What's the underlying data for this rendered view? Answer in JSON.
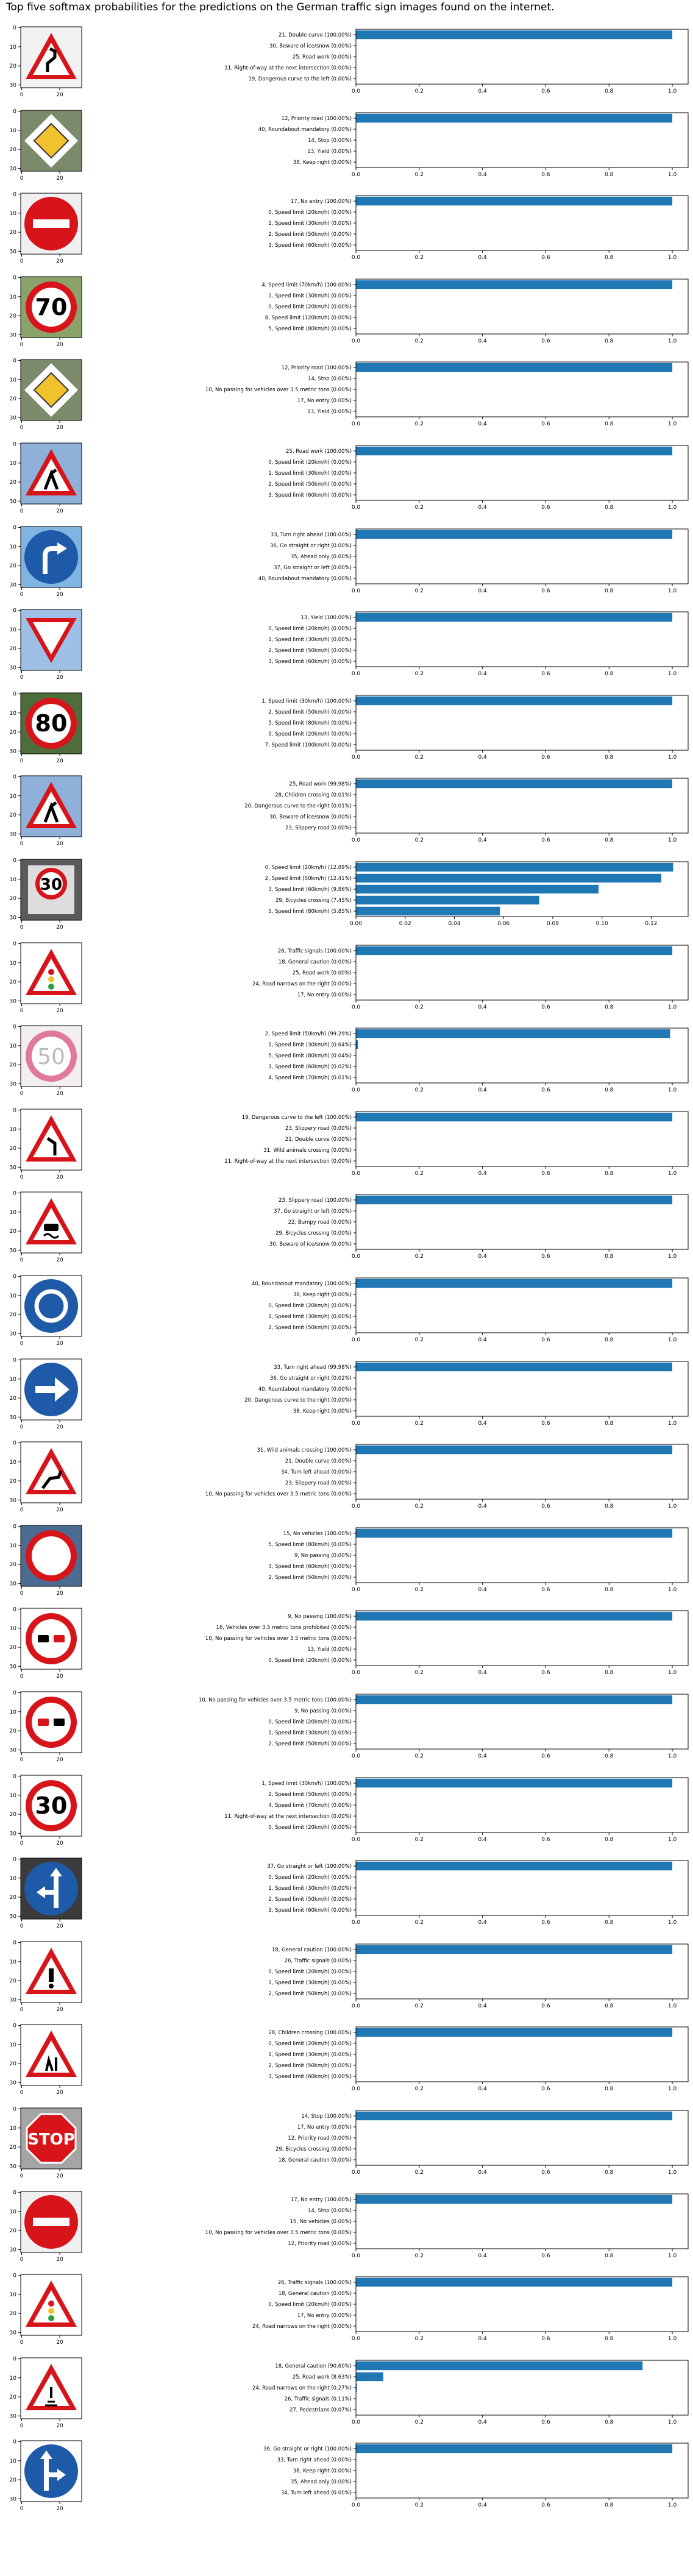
{
  "figure_title": "Top five softmax probabilities for the predictions on the German traffic sign images found on the internet.",
  "colors": {
    "bar": "#1f77b4",
    "axis": "#000000",
    "sign_red": "#d7141a",
    "sign_blue": "#1f5aa8",
    "sign_white": "#ffffff"
  },
  "image_axes": {
    "xticks": [
      "0",
      "20"
    ],
    "yticks": [
      "0",
      "10",
      "20",
      "30"
    ]
  },
  "chart_data": [
    {
      "type": "bar",
      "orientation": "horizontal",
      "image_icon": "double-curve-sign-icon",
      "categories": [
        "21, Double curve (100.00%)",
        "30, Beware of ice/snow (0.00%)",
        "25, Road work (0.00%)",
        "11, Right-of-way at the next intersection (0.00%)",
        "19, Dangerous curve to the left (0.00%)"
      ],
      "values": [
        1.0,
        0,
        0,
        0,
        0
      ],
      "xlim": [
        0,
        1.05
      ],
      "xticks": [
        "0.0",
        "0.2",
        "0.4",
        "0.6",
        "0.8",
        "1.0"
      ]
    },
    {
      "type": "bar",
      "orientation": "horizontal",
      "image_icon": "priority-road-sign-icon",
      "categories": [
        "12, Priority road (100.00%)",
        "40, Roundabout mandatory (0.00%)",
        "14, Stop (0.00%)",
        "13, Yield (0.00%)",
        "38, Keep right (0.00%)"
      ],
      "values": [
        1.0,
        0,
        0,
        0,
        0
      ],
      "xlim": [
        0,
        1.05
      ],
      "xticks": [
        "0.0",
        "0.2",
        "0.4",
        "0.6",
        "0.8",
        "1.0"
      ]
    },
    {
      "type": "bar",
      "orientation": "horizontal",
      "image_icon": "no-entry-sign-icon",
      "categories": [
        "17, No entry (100.00%)",
        "0, Speed limit (20km/h) (0.00%)",
        "1, Speed limit (30km/h) (0.00%)",
        "2, Speed limit (50km/h) (0.00%)",
        "3, Speed limit (60km/h) (0.00%)"
      ],
      "values": [
        1.0,
        0,
        0,
        0,
        0
      ],
      "xlim": [
        0,
        1.05
      ],
      "xticks": [
        "0.0",
        "0.2",
        "0.4",
        "0.6",
        "0.8",
        "1.0"
      ]
    },
    {
      "type": "bar",
      "orientation": "horizontal",
      "image_icon": "speed-limit-70-sign-icon",
      "categories": [
        "4, Speed limit (70km/h) (100.00%)",
        "1, Speed limit (30km/h) (0.00%)",
        "0, Speed limit (20km/h) (0.00%)",
        "8, Speed limit (120km/h) (0.00%)",
        "5, Speed limit (80km/h) (0.00%)"
      ],
      "values": [
        1.0,
        0,
        0,
        0,
        0
      ],
      "xlim": [
        0,
        1.05
      ],
      "xticks": [
        "0.0",
        "0.2",
        "0.4",
        "0.6",
        "0.8",
        "1.0"
      ]
    },
    {
      "type": "bar",
      "orientation": "horizontal",
      "image_icon": "priority-road-sign-icon",
      "categories": [
        "12, Priority road (100.00%)",
        "14, Stop (0.00%)",
        "10, No passing for vehicles over 3.5 metric tons (0.00%)",
        "17, No entry (0.00%)",
        "13, Yield (0.00%)"
      ],
      "values": [
        1.0,
        0,
        0,
        0,
        0
      ],
      "xlim": [
        0,
        1.05
      ],
      "xticks": [
        "0.0",
        "0.2",
        "0.4",
        "0.6",
        "0.8",
        "1.0"
      ]
    },
    {
      "type": "bar",
      "orientation": "horizontal",
      "image_icon": "road-work-sign-icon",
      "categories": [
        "25, Road work (100.00%)",
        "0, Speed limit (20km/h) (0.00%)",
        "1, Speed limit (30km/h) (0.00%)",
        "2, Speed limit (50km/h) (0.00%)",
        "3, Speed limit (60km/h) (0.00%)"
      ],
      "values": [
        1.0,
        0,
        0,
        0,
        0
      ],
      "xlim": [
        0,
        1.05
      ],
      "xticks": [
        "0.0",
        "0.2",
        "0.4",
        "0.6",
        "0.8",
        "1.0"
      ]
    },
    {
      "type": "bar",
      "orientation": "horizontal",
      "image_icon": "turn-right-ahead-sign-icon",
      "categories": [
        "33, Turn right ahead (100.00%)",
        "36, Go straight or right (0.00%)",
        "35, Ahead only (0.00%)",
        "37, Go straight or left (0.00%)",
        "40, Roundabout mandatory (0.00%)"
      ],
      "values": [
        1.0,
        0,
        0,
        0,
        0
      ],
      "xlim": [
        0,
        1.05
      ],
      "xticks": [
        "0.0",
        "0.2",
        "0.4",
        "0.6",
        "0.8",
        "1.0"
      ]
    },
    {
      "type": "bar",
      "orientation": "horizontal",
      "image_icon": "yield-sign-icon",
      "categories": [
        "13, Yield (100.00%)",
        "0, Speed limit (20km/h) (0.00%)",
        "1, Speed limit (30km/h) (0.00%)",
        "2, Speed limit (50km/h) (0.00%)",
        "3, Speed limit (60km/h) (0.00%)"
      ],
      "values": [
        1.0,
        0,
        0,
        0,
        0
      ],
      "xlim": [
        0,
        1.05
      ],
      "xticks": [
        "0.0",
        "0.2",
        "0.4",
        "0.6",
        "0.8",
        "1.0"
      ]
    },
    {
      "type": "bar",
      "orientation": "horizontal",
      "image_icon": "speed-limit-80-sign-icon",
      "categories": [
        "1, Speed limit (30km/h) (100.00%)",
        "2, Speed limit (50km/h) (0.00%)",
        "5, Speed limit (80km/h) (0.00%)",
        "0, Speed limit (20km/h) (0.00%)",
        "7, Speed limit (100km/h) (0.00%)"
      ],
      "values": [
        1.0,
        0,
        0,
        0,
        0
      ],
      "xlim": [
        0,
        1.05
      ],
      "xticks": [
        "0.0",
        "0.2",
        "0.4",
        "0.6",
        "0.8",
        "1.0"
      ]
    },
    {
      "type": "bar",
      "orientation": "horizontal",
      "image_icon": "road-work-sign-icon",
      "categories": [
        "25, Road work (99.98%)",
        "28, Children crossing (0.01%)",
        "20, Dangerous curve to the right (0.01%)",
        "30, Beware of ice/snow (0.00%)",
        "23, Slippery road (0.00%)"
      ],
      "values": [
        0.9998,
        0.0001,
        0.0001,
        0,
        0
      ],
      "xlim": [
        0,
        1.05
      ],
      "xticks": [
        "0.0",
        "0.2",
        "0.4",
        "0.6",
        "0.8",
        "1.0"
      ]
    },
    {
      "type": "bar",
      "orientation": "horizontal",
      "image_icon": "speed-zone-30-sign-icon",
      "categories": [
        "0, Speed limit (20km/h) (12.89%)",
        "2, Speed limit (50km/h) (12.41%)",
        "3, Speed limit (60km/h) (9.86%)",
        "29, Bicycles crossing (7.45%)",
        "5, Speed limit (80km/h) (5.85%)"
      ],
      "values": [
        0.1289,
        0.1241,
        0.0986,
        0.0745,
        0.0585
      ],
      "xlim": [
        0,
        0.135
      ],
      "xticks": [
        "0.00",
        "0.02",
        "0.04",
        "0.06",
        "0.08",
        "0.10",
        "0.12"
      ]
    },
    {
      "type": "bar",
      "orientation": "horizontal",
      "image_icon": "traffic-signals-sign-icon",
      "categories": [
        "26, Traffic signals (100.00%)",
        "18, General caution (0.00%)",
        "25, Road work (0.00%)",
        "24, Road narrows on the right (0.00%)",
        "17, No entry (0.00%)"
      ],
      "values": [
        1.0,
        0,
        0,
        0,
        0
      ],
      "xlim": [
        0,
        1.05
      ],
      "xticks": [
        "0.0",
        "0.2",
        "0.4",
        "0.6",
        "0.8",
        "1.0"
      ]
    },
    {
      "type": "bar",
      "orientation": "horizontal",
      "image_icon": "speed-limit-50-sign-icon",
      "categories": [
        "2, Speed limit (50km/h) (99.29%)",
        "1, Speed limit (30km/h) (0.64%)",
        "5, Speed limit (80km/h) (0.04%)",
        "3, Speed limit (60km/h) (0.02%)",
        "4, Speed limit (70km/h) (0.01%)"
      ],
      "values": [
        0.9929,
        0.0064,
        0.0004,
        0.0002,
        0.0001
      ],
      "xlim": [
        0,
        1.05
      ],
      "xticks": [
        "0.0",
        "0.2",
        "0.4",
        "0.6",
        "0.8",
        "1.0"
      ]
    },
    {
      "type": "bar",
      "orientation": "horizontal",
      "image_icon": "dangerous-curve-left-sign-icon",
      "categories": [
        "19, Dangerous curve to the left (100.00%)",
        "23, Slippery road (0.00%)",
        "21, Double curve (0.00%)",
        "31, Wild animals crossing (0.00%)",
        "11, Right-of-way at the next intersection (0.00%)"
      ],
      "values": [
        1.0,
        0,
        0,
        0,
        0
      ],
      "xlim": [
        0,
        1.05
      ],
      "xticks": [
        "0.0",
        "0.2",
        "0.4",
        "0.6",
        "0.8",
        "1.0"
      ]
    },
    {
      "type": "bar",
      "orientation": "horizontal",
      "image_icon": "slippery-road-sign-icon",
      "categories": [
        "23, Slippery road (100.00%)",
        "37, Go straight or left (0.00%)",
        "22, Bumpy road (0.00%)",
        "29, Bicycles crossing (0.00%)",
        "30, Beware of ice/snow (0.00%)"
      ],
      "values": [
        1.0,
        0,
        0,
        0,
        0
      ],
      "xlim": [
        0,
        1.05
      ],
      "xticks": [
        "0.0",
        "0.2",
        "0.4",
        "0.6",
        "0.8",
        "1.0"
      ]
    },
    {
      "type": "bar",
      "orientation": "horizontal",
      "image_icon": "roundabout-sign-icon",
      "categories": [
        "40, Roundabout mandatory (100.00%)",
        "38, Keep right (0.00%)",
        "0, Speed limit (20km/h) (0.00%)",
        "1, Speed limit (30km/h) (0.00%)",
        "2, Speed limit (50km/h) (0.00%)"
      ],
      "values": [
        1.0,
        0,
        0,
        0,
        0
      ],
      "xlim": [
        0,
        1.05
      ],
      "xticks": [
        "0.0",
        "0.2",
        "0.4",
        "0.6",
        "0.8",
        "1.0"
      ]
    },
    {
      "type": "bar",
      "orientation": "horizontal",
      "image_icon": "turn-right-arrow-sign-icon",
      "categories": [
        "33, Turn right ahead (99.98%)",
        "36, Go straight or right (0.02%)",
        "40, Roundabout mandatory (0.00%)",
        "20, Dangerous curve to the right (0.00%)",
        "38, Keep right (0.00%)"
      ],
      "values": [
        0.9998,
        0.0002,
        0,
        0,
        0
      ],
      "xlim": [
        0,
        1.05
      ],
      "xticks": [
        "0.0",
        "0.2",
        "0.4",
        "0.6",
        "0.8",
        "1.0"
      ]
    },
    {
      "type": "bar",
      "orientation": "horizontal",
      "image_icon": "wild-animals-sign-icon",
      "categories": [
        "31, Wild animals crossing (100.00%)",
        "21, Double curve (0.00%)",
        "34, Turn left ahead (0.00%)",
        "23, Slippery road (0.00%)",
        "10, No passing for vehicles over 3.5 metric tons (0.00%)"
      ],
      "values": [
        1.0,
        0,
        0,
        0,
        0
      ],
      "xlim": [
        0,
        1.05
      ],
      "xticks": [
        "0.0",
        "0.2",
        "0.4",
        "0.6",
        "0.8",
        "1.0"
      ]
    },
    {
      "type": "bar",
      "orientation": "horizontal",
      "image_icon": "no-vehicles-sign-icon",
      "categories": [
        "15, No vehicles (100.00%)",
        "5, Speed limit (80km/h) (0.00%)",
        "9, No passing (0.00%)",
        "3, Speed limit (60km/h) (0.00%)",
        "2, Speed limit (50km/h) (0.00%)"
      ],
      "values": [
        1.0,
        0,
        0,
        0,
        0
      ],
      "xlim": [
        0,
        1.05
      ],
      "xticks": [
        "0.0",
        "0.2",
        "0.4",
        "0.6",
        "0.8",
        "1.0"
      ]
    },
    {
      "type": "bar",
      "orientation": "horizontal",
      "image_icon": "no-passing-sign-icon",
      "categories": [
        "9, No passing (100.00%)",
        "16, Vehicles over 3.5 metric tons prohibited (0.00%)",
        "10, No passing for vehicles over 3.5 metric tons (0.00%)",
        "13, Yield (0.00%)",
        "0, Speed limit (20km/h) (0.00%)"
      ],
      "values": [
        1.0,
        0,
        0,
        0,
        0
      ],
      "xlim": [
        0,
        1.05
      ],
      "xticks": [
        "0.0",
        "0.2",
        "0.4",
        "0.6",
        "0.8",
        "1.0"
      ]
    },
    {
      "type": "bar",
      "orientation": "horizontal",
      "image_icon": "no-passing-trucks-sign-icon",
      "categories": [
        "10, No passing for vehicles over 3.5 metric tons (100.00%)",
        "9, No passing (0.00%)",
        "0, Speed limit (20km/h) (0.00%)",
        "1, Speed limit (30km/h) (0.00%)",
        "2, Speed limit (50km/h) (0.00%)"
      ],
      "values": [
        1.0,
        0,
        0,
        0,
        0
      ],
      "xlim": [
        0,
        1.05
      ],
      "xticks": [
        "0.0",
        "0.2",
        "0.4",
        "0.6",
        "0.8",
        "1.0"
      ]
    },
    {
      "type": "bar",
      "orientation": "horizontal",
      "image_icon": "speed-limit-30-sign-icon",
      "categories": [
        "1, Speed limit (30km/h) (100.00%)",
        "2, Speed limit (50km/h) (0.00%)",
        "4, Speed limit (70km/h) (0.00%)",
        "11, Right-of-way at the next intersection (0.00%)",
        "0, Speed limit (20km/h) (0.00%)"
      ],
      "values": [
        1.0,
        0,
        0,
        0,
        0
      ],
      "xlim": [
        0,
        1.05
      ],
      "xticks": [
        "0.0",
        "0.2",
        "0.4",
        "0.6",
        "0.8",
        "1.0"
      ]
    },
    {
      "type": "bar",
      "orientation": "horizontal",
      "image_icon": "go-straight-or-left-sign-icon",
      "categories": [
        "37, Go straight or left (100.00%)",
        "0, Speed limit (20km/h) (0.00%)",
        "1, Speed limit (30km/h) (0.00%)",
        "2, Speed limit (50km/h) (0.00%)",
        "3, Speed limit (60km/h) (0.00%)"
      ],
      "values": [
        1.0,
        0,
        0,
        0,
        0
      ],
      "xlim": [
        0,
        1.05
      ],
      "xticks": [
        "0.0",
        "0.2",
        "0.4",
        "0.6",
        "0.8",
        "1.0"
      ]
    },
    {
      "type": "bar",
      "orientation": "horizontal",
      "image_icon": "general-caution-sign-icon",
      "categories": [
        "18, General caution (100.00%)",
        "26, Traffic signals (0.00%)",
        "0, Speed limit (20km/h) (0.00%)",
        "1, Speed limit (30km/h) (0.00%)",
        "2, Speed limit (50km/h) (0.00%)"
      ],
      "values": [
        1.0,
        0,
        0,
        0,
        0
      ],
      "xlim": [
        0,
        1.05
      ],
      "xticks": [
        "0.0",
        "0.2",
        "0.4",
        "0.6",
        "0.8",
        "1.0"
      ]
    },
    {
      "type": "bar",
      "orientation": "horizontal",
      "image_icon": "children-crossing-sign-icon",
      "categories": [
        "28, Children crossing (100.00%)",
        "0, Speed limit (20km/h) (0.00%)",
        "1, Speed limit (30km/h) (0.00%)",
        "2, Speed limit (50km/h) (0.00%)",
        "3, Speed limit (60km/h) (0.00%)"
      ],
      "values": [
        1.0,
        0,
        0,
        0,
        0
      ],
      "xlim": [
        0,
        1.05
      ],
      "xticks": [
        "0.0",
        "0.2",
        "0.4",
        "0.6",
        "0.8",
        "1.0"
      ]
    },
    {
      "type": "bar",
      "orientation": "horizontal",
      "image_icon": "stop-sign-icon",
      "categories": [
        "14, Stop (100.00%)",
        "17, No entry (0.00%)",
        "12, Priority road (0.00%)",
        "29, Bicycles crossing (0.00%)",
        "18, General caution (0.00%)"
      ],
      "values": [
        1.0,
        0,
        0,
        0,
        0
      ],
      "xlim": [
        0,
        1.05
      ],
      "xticks": [
        "0.0",
        "0.2",
        "0.4",
        "0.6",
        "0.8",
        "1.0"
      ]
    },
    {
      "type": "bar",
      "orientation": "horizontal",
      "image_icon": "no-entry-sign-icon",
      "categories": [
        "17, No entry (100.00%)",
        "14, Stop (0.00%)",
        "15, No vehicles (0.00%)",
        "10, No passing for vehicles over 3.5 metric tons (0.00%)",
        "12, Priority road (0.00%)"
      ],
      "values": [
        1.0,
        0,
        0,
        0,
        0
      ],
      "xlim": [
        0,
        1.05
      ],
      "xticks": [
        "0.0",
        "0.2",
        "0.4",
        "0.6",
        "0.8",
        "1.0"
      ]
    },
    {
      "type": "bar",
      "orientation": "horizontal",
      "image_icon": "traffic-signals-sign-icon",
      "categories": [
        "26, Traffic signals (100.00%)",
        "18, General caution (0.00%)",
        "0, Speed limit (20km/h) (0.00%)",
        "17, No entry (0.00%)",
        "24, Road narrows on the right (0.00%)"
      ],
      "values": [
        1.0,
        0,
        0,
        0,
        0
      ],
      "xlim": [
        0,
        1.05
      ],
      "xticks": [
        "0.0",
        "0.2",
        "0.4",
        "0.6",
        "0.8",
        "1.0"
      ]
    },
    {
      "type": "bar",
      "orientation": "horizontal",
      "image_icon": "pedestrians-sign-icon",
      "categories": [
        "18, General caution (90.60%)",
        "25, Road work (8.63%)",
        "24, Road narrows on the right (0.27%)",
        "26, Traffic signals (0.11%)",
        "27, Pedestrians (0.07%)"
      ],
      "values": [
        0.906,
        0.0863,
        0.0027,
        0.0011,
        0.0007
      ],
      "xlim": [
        0,
        1.05
      ],
      "xticks": [
        "0.0",
        "0.2",
        "0.4",
        "0.6",
        "0.8",
        "1.0"
      ]
    },
    {
      "type": "bar",
      "orientation": "horizontal",
      "image_icon": "go-straight-or-right-sign-icon",
      "categories": [
        "36, Go straight or right (100.00%)",
        "33, Turn right ahead (0.00%)",
        "38, Keep right (0.00%)",
        "35, Ahead only (0.00%)",
        "34, Turn left ahead (0.00%)"
      ],
      "values": [
        1.0,
        0,
        0,
        0,
        0
      ],
      "xlim": [
        0,
        1.05
      ],
      "xticks": [
        "0.0",
        "0.2",
        "0.4",
        "0.6",
        "0.8",
        "1.0"
      ]
    }
  ]
}
